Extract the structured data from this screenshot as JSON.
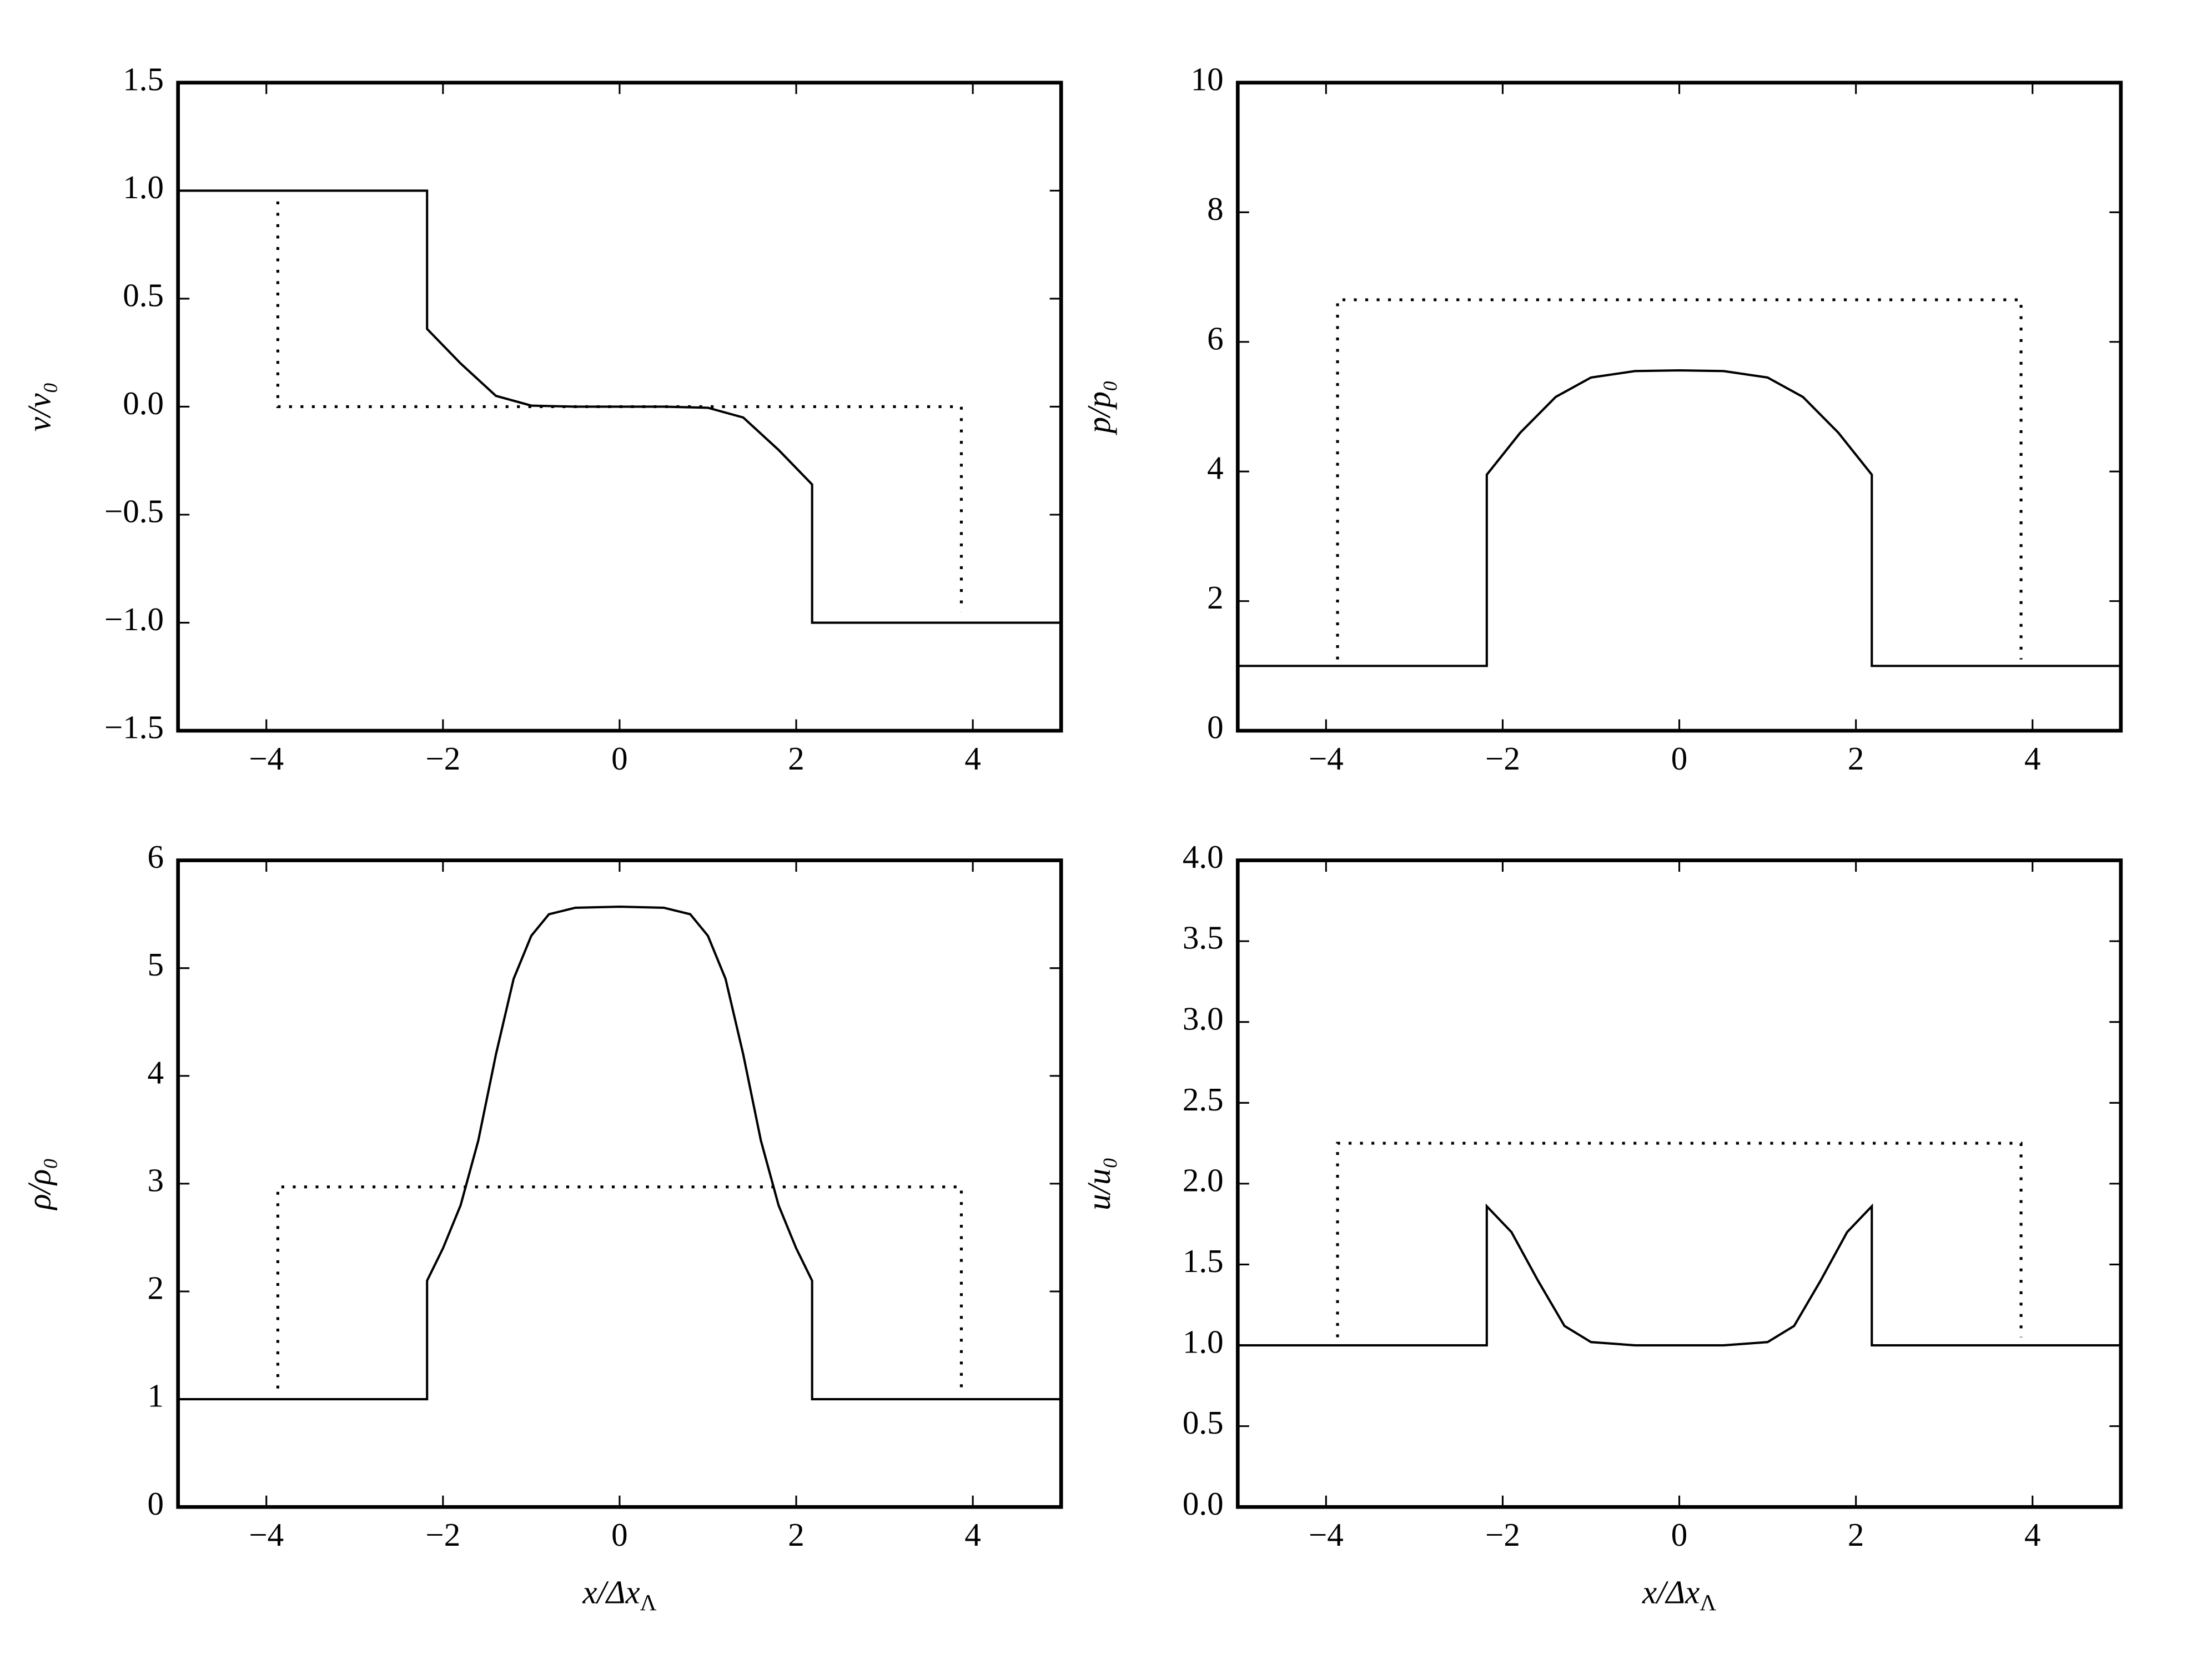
{
  "chart_data": [
    {
      "type": "line",
      "ylabel": "v/v₀",
      "xlim": [
        -5,
        5
      ],
      "ylim": [
        -1.5,
        1.5
      ],
      "xticks": [
        {
          "value": -4,
          "label": "−4"
        },
        {
          "value": -2,
          "label": "−2"
        },
        0,
        2,
        4
      ],
      "yticks": [
        {
          "value": -1.5,
          "label": "−1.5"
        },
        {
          "value": -1,
          "label": "−1.0"
        },
        {
          "value": -0.5,
          "label": "−0.5"
        },
        {
          "value": 0,
          "label": "0.0"
        },
        {
          "value": 0.5,
          "label": "0.5"
        },
        {
          "value": 1,
          "label": "1.0"
        },
        {
          "value": 1.5,
          "label": "1.5"
        }
      ],
      "series": [
        {
          "color": "#000000",
          "style": "solid",
          "x": [
            -5,
            -2.18,
            -2.18,
            -1.8,
            -1.4,
            -1.0,
            -0.5,
            0,
            0.5,
            1.0,
            1.4,
            1.8,
            2.18,
            2.18,
            5
          ],
          "values": [
            1,
            1,
            0.36,
            0.2,
            0.05,
            0.005,
            0,
            0,
            0,
            -0.005,
            -0.05,
            -0.2,
            -0.36,
            -1,
            -1
          ]
        },
        {
          "color": "#000000",
          "style": "dotted",
          "x": [
            -3.87,
            -3.87,
            3.87,
            3.87
          ],
          "values": [
            0.95,
            0,
            0,
            -0.95
          ]
        }
      ]
    },
    {
      "type": "line",
      "ylabel": "p/p₀",
      "xlim": [
        -5,
        5
      ],
      "ylim": [
        0,
        10
      ],
      "xticks": [
        {
          "value": -4,
          "label": "−4"
        },
        {
          "value": -2,
          "label": "−2"
        },
        0,
        2,
        4
      ],
      "yticks": [
        0,
        2,
        4,
        6,
        8,
        10
      ],
      "series": [
        {
          "color": "#000000",
          "style": "solid",
          "x": [
            -5,
            -2.18,
            -2.18,
            -1.8,
            -1.4,
            -1.0,
            -0.5,
            0,
            0.5,
            1.0,
            1.4,
            1.8,
            2.18,
            2.18,
            5
          ],
          "values": [
            1,
            1,
            3.95,
            4.6,
            5.15,
            5.45,
            5.55,
            5.56,
            5.55,
            5.45,
            5.15,
            4.6,
            3.95,
            1,
            1
          ]
        },
        {
          "color": "#000000",
          "style": "dotted",
          "x": [
            -3.87,
            -3.87,
            3.87,
            3.87
          ],
          "values": [
            1.1,
            6.65,
            6.65,
            1.1
          ]
        }
      ]
    },
    {
      "type": "line",
      "ylabel": "ρ/ρ₀",
      "xlabel": {
        "text": "x/Δx",
        "sub": "Λ"
      },
      "xlim": [
        -5,
        5
      ],
      "ylim": [
        0,
        6
      ],
      "xticks": [
        {
          "value": -4,
          "label": "−4"
        },
        {
          "value": -2,
          "label": "−2"
        },
        0,
        2,
        4
      ],
      "yticks": [
        0,
        1,
        2,
        3,
        4,
        5,
        6
      ],
      "series": [
        {
          "color": "#000000",
          "style": "solid",
          "x": [
            -5,
            -2.18,
            -2.18,
            -2.0,
            -1.8,
            -1.6,
            -1.4,
            -1.2,
            -1.0,
            -0.8,
            -0.5,
            0,
            0.5,
            0.8,
            1.0,
            1.2,
            1.4,
            1.6,
            1.8,
            2.0,
            2.18,
            2.18,
            5
          ],
          "values": [
            1,
            1,
            2.1,
            2.4,
            2.8,
            3.4,
            4.2,
            4.9,
            5.3,
            5.5,
            5.56,
            5.57,
            5.56,
            5.5,
            5.3,
            4.9,
            4.2,
            3.4,
            2.8,
            2.4,
            2.1,
            1,
            1
          ]
        },
        {
          "color": "#000000",
          "style": "dotted",
          "x": [
            -3.87,
            -3.87,
            3.87,
            3.87
          ],
          "values": [
            1.1,
            2.97,
            2.97,
            1.1
          ]
        }
      ]
    },
    {
      "type": "line",
      "ylabel": "u/u₀",
      "xlabel": {
        "text": "x/Δx",
        "sub": "Λ"
      },
      "xlim": [
        -5,
        5
      ],
      "ylim": [
        0,
        4
      ],
      "xticks": [
        {
          "value": -4,
          "label": "−4"
        },
        {
          "value": -2,
          "label": "−2"
        },
        0,
        2,
        4
      ],
      "yticks": [
        {
          "value": 0,
          "label": "0.0"
        },
        {
          "value": 0.5,
          "label": "0.5"
        },
        {
          "value": 1,
          "label": "1.0"
        },
        {
          "value": 1.5,
          "label": "1.5"
        },
        {
          "value": 2,
          "label": "2.0"
        },
        {
          "value": 2.5,
          "label": "2.5"
        },
        {
          "value": 3,
          "label": "3.0"
        },
        {
          "value": 3.5,
          "label": "3.5"
        },
        {
          "value": 4,
          "label": "4.0"
        }
      ],
      "series": [
        {
          "color": "#000000",
          "style": "solid",
          "x": [
            -5,
            -2.18,
            -2.18,
            -1.9,
            -1.6,
            -1.3,
            -1.0,
            -0.5,
            0,
            0.5,
            1.0,
            1.3,
            1.6,
            1.9,
            2.18,
            2.18,
            5
          ],
          "values": [
            1,
            1,
            1.86,
            1.7,
            1.4,
            1.12,
            1.02,
            1,
            1,
            1,
            1.02,
            1.12,
            1.4,
            1.7,
            1.86,
            1,
            1
          ]
        },
        {
          "color": "#000000",
          "style": "dotted",
          "x": [
            -3.87,
            -3.87,
            3.87,
            3.87
          ],
          "values": [
            1.05,
            2.25,
            2.25,
            1.05
          ]
        }
      ]
    }
  ]
}
